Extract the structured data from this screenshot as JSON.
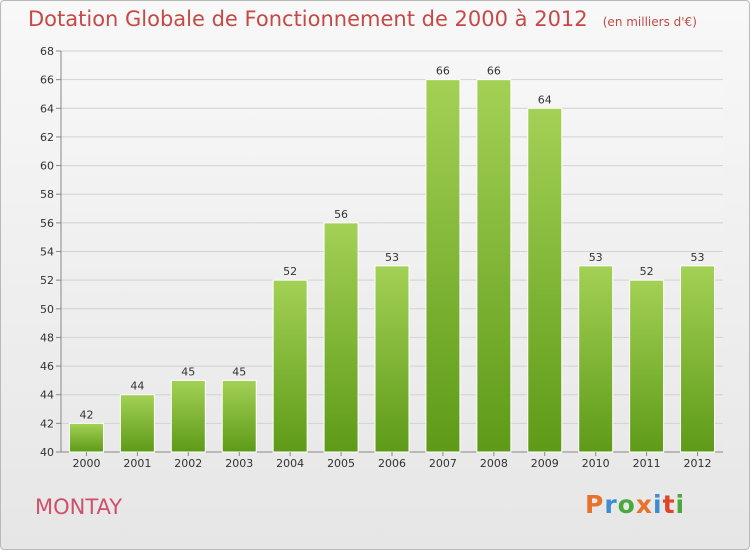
{
  "header": {
    "title": "Dotation Globale de Fonctionnement de 2000 à 2012",
    "unit": "(en milliers d'€)"
  },
  "footer": {
    "town": "MONTAY",
    "logo": "Proxiti"
  },
  "colors": {
    "title": "#c54a46",
    "town": "#d04f6a",
    "bar_light": "#a3d155",
    "bar_dark": "#5e9a18",
    "logo_letters": [
      "#e8712c",
      "#3d8ccf",
      "#4aa83c",
      "#e8712c",
      "#3d8ccf",
      "#e0452b",
      "#4aa83c"
    ]
  },
  "chart_data": {
    "type": "bar",
    "categories": [
      "2000",
      "2001",
      "2002",
      "2003",
      "2004",
      "2005",
      "2006",
      "2007",
      "2008",
      "2009",
      "2010",
      "2011",
      "2012"
    ],
    "values": [
      42,
      44,
      45,
      45,
      52,
      56,
      53,
      66,
      66,
      64,
      53,
      52,
      53
    ],
    "ylim": [
      40,
      68
    ],
    "yticks": [
      40,
      42,
      44,
      46,
      48,
      50,
      52,
      54,
      56,
      58,
      60,
      62,
      64,
      66,
      68
    ],
    "grid": true,
    "data_labels": true
  }
}
